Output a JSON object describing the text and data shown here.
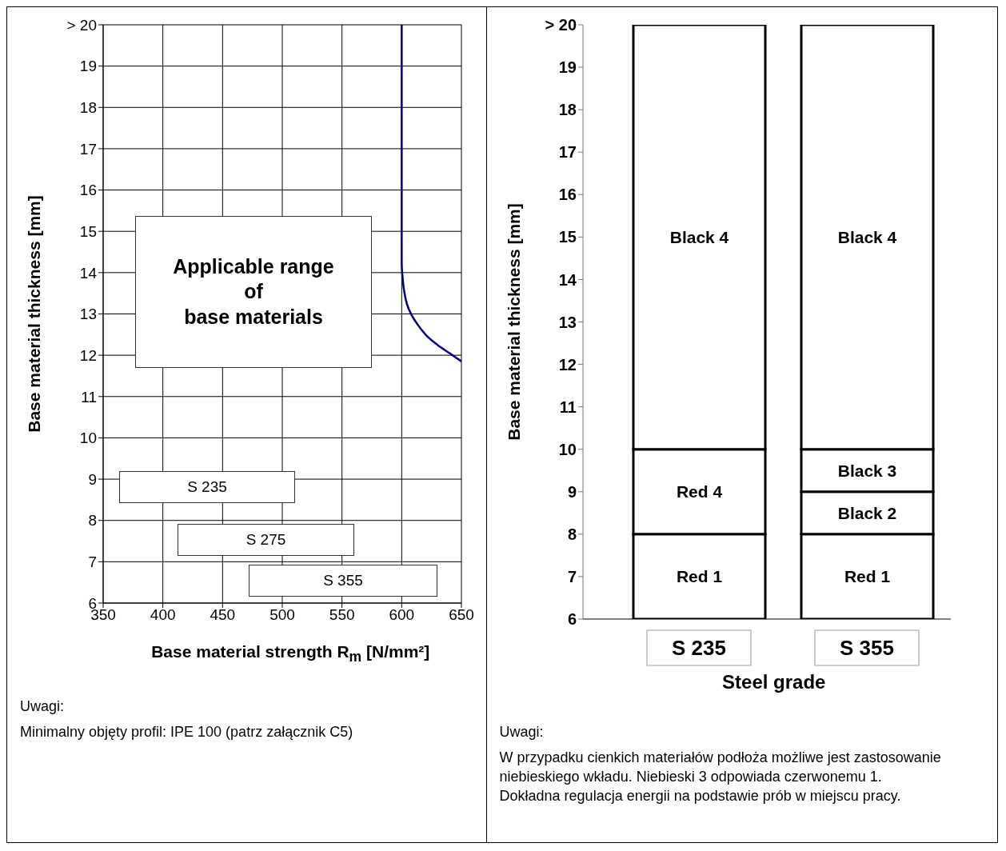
{
  "chart_data": [
    {
      "type": "line",
      "xlabel": "Base material strength R$_{m}$ [N/mm²]",
      "ylabel": "Base material thickness [mm]",
      "series": [
        {
          "color": "#000080",
          "x": [
            600,
            600,
            601,
            603,
            607,
            612,
            620,
            630,
            640,
            650
          ],
          "values": [
            20,
            14.2,
            13.8,
            13.4,
            13.05,
            12.8,
            12.5,
            12.25,
            12.05,
            11.85
          ]
        }
      ],
      "xlim": [
        350,
        650
      ],
      "xticks": [
        350,
        400,
        450,
        500,
        550,
        600,
        650
      ],
      "ylim": [
        6,
        20
      ],
      "yticks": [
        6,
        7,
        8,
        9,
        10,
        11,
        12,
        13,
        14,
        15,
        16,
        17,
        18,
        19,
        {
          "value": 20,
          "label": "> 20"
        }
      ],
      "grid": true,
      "annotations": [
        "Applicable range\nof\nbase materials",
        "S 235",
        "S 275",
        "S 355",
        "Uwagi:",
        "Minimalny objęty profil: IPE 100 (patrz załącznik C5)"
      ]
    },
    {
      "type": "bar",
      "xlabel": "Steel grade",
      "ylabel": "Base material thickness [mm]",
      "categories": [
        "S 235",
        "S 355"
      ],
      "series": [
        {
          "color": "#ffffff",
          "base": [
            6,
            6
          ],
          "values": [
            2,
            2
          ],
          "value_labels": [
            "Red 1",
            "Red 1"
          ]
        },
        {
          "color": "#ffffff",
          "base": [
            8,
            8
          ],
          "values": [
            2,
            1
          ],
          "value_labels": [
            "Red 4",
            "Black 2"
          ]
        },
        {
          "color": "#ffffff",
          "base": [
            null,
            9
          ],
          "values": [
            null,
            1
          ],
          "value_labels": [
            null,
            "Black 3"
          ]
        },
        {
          "color": "#ffffff",
          "base": [
            10,
            10
          ],
          "values": [
            10,
            10
          ],
          "value_labels": [
            "Black 4",
            "Black 4"
          ]
        }
      ],
      "ylim": [
        6,
        20
      ],
      "yticks": [
        6,
        7,
        8,
        9,
        10,
        11,
        12,
        13,
        14,
        15,
        16,
        17,
        18,
        19,
        {
          "value": 20,
          "label": "> 20"
        }
      ],
      "annotations": [
        "Uwagi:",
        "W przypadku cienkich materiałów podłoża możliwe jest zastosowanie niebieskiego wkładu. Niebieski 3 odpowiada czerwonemu 1.",
        "Dokładna regulacja energii na podstawie prób w miejscu pracy."
      ]
    }
  ]
}
